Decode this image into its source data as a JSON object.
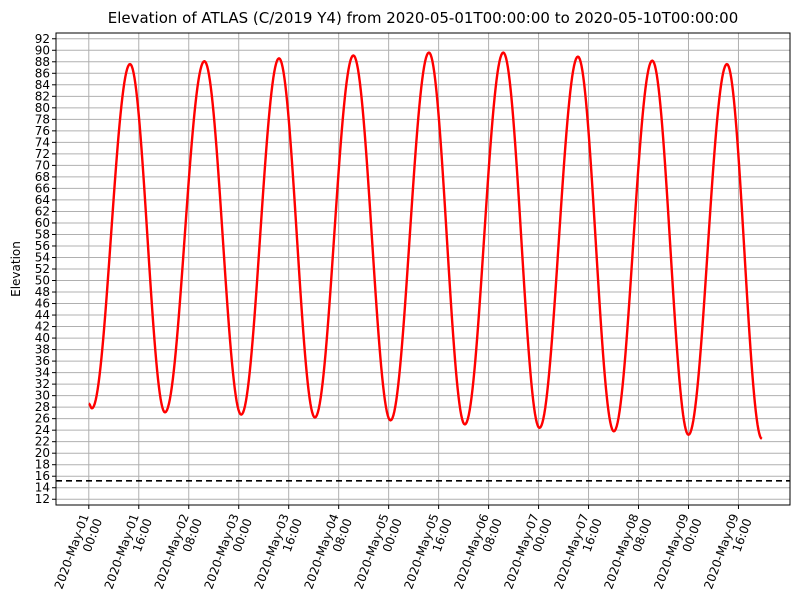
{
  "chart_data": {
    "type": "line",
    "title": "Elevation of ATLAS (C/2019 Y4) from 2020-05-01T00:00:00 to 2020-05-10T00:00:00",
    "xlabel": "",
    "ylabel": "Elevation",
    "ylim": [
      11,
      93
    ],
    "yticks": [
      12,
      14,
      16,
      18,
      20,
      22,
      24,
      26,
      28,
      30,
      32,
      34,
      36,
      38,
      40,
      42,
      44,
      46,
      48,
      50,
      52,
      54,
      56,
      58,
      60,
      62,
      64,
      66,
      68,
      70,
      72,
      74,
      76,
      78,
      80,
      82,
      84,
      86,
      88,
      90,
      92
    ],
    "xlim_hours": [
      -10.5,
      224.5
    ],
    "x_ticks": [
      {
        "hours": 0,
        "line1": "2020-May-01",
        "line2": "00:00"
      },
      {
        "hours": 16,
        "line1": "2020-May-01",
        "line2": "16:00"
      },
      {
        "hours": 32,
        "line1": "2020-May-02",
        "line2": "08:00"
      },
      {
        "hours": 48,
        "line1": "2020-May-03",
        "line2": "00:00"
      },
      {
        "hours": 64,
        "line1": "2020-May-03",
        "line2": "16:00"
      },
      {
        "hours": 80,
        "line1": "2020-May-04",
        "line2": "08:00"
      },
      {
        "hours": 96,
        "line1": "2020-May-05",
        "line2": "00:00"
      },
      {
        "hours": 112,
        "line1": "2020-May-05",
        "line2": "16:00"
      },
      {
        "hours": 128,
        "line1": "2020-May-06",
        "line2": "08:00"
      },
      {
        "hours": 144,
        "line1": "2020-May-07",
        "line2": "00:00"
      },
      {
        "hours": 160,
        "line1": "2020-May-07",
        "line2": "16:00"
      },
      {
        "hours": 176,
        "line1": "2020-May-08",
        "line2": "08:00"
      },
      {
        "hours": 192,
        "line1": "2020-May-09",
        "line2": "00:00"
      },
      {
        "hours": 208,
        "line1": "2020-May-09",
        "line2": "16:00"
      }
    ],
    "grid": true,
    "horizon_line": {
      "y": 15.2,
      "style": "dashed",
      "color": "#000000"
    },
    "series": [
      {
        "color": "#ff0000",
        "peaks": [
          {
            "hours": 13.2,
            "y": 87.6
          },
          {
            "hours": 37.0,
            "y": 88.1
          },
          {
            "hours": 60.9,
            "y": 88.6
          },
          {
            "hours": 84.7,
            "y": 89.1
          },
          {
            "hours": 108.9,
            "y": 89.6
          },
          {
            "hours": 132.7,
            "y": 89.6
          },
          {
            "hours": 156.6,
            "y": 88.9
          },
          {
            "hours": 180.4,
            "y": 88.2
          },
          {
            "hours": 204.3,
            "y": 87.6
          }
        ],
        "troughs": [
          {
            "hours": 1.0,
            "y": 27.8
          },
          {
            "hours": 24.4,
            "y": 27.1
          },
          {
            "hours": 48.8,
            "y": 26.7
          },
          {
            "hours": 72.4,
            "y": 26.2
          },
          {
            "hours": 96.6,
            "y": 25.7
          },
          {
            "hours": 120.4,
            "y": 25.0
          },
          {
            "hours": 144.3,
            "y": 24.4
          },
          {
            "hours": 168.1,
            "y": 23.8
          },
          {
            "hours": 192.0,
            "y": 23.2
          }
        ],
        "start": {
          "hours": 0.0,
          "y": 28.6
        },
        "end": {
          "hours": 215.5,
          "y": 22.5
        }
      }
    ]
  }
}
